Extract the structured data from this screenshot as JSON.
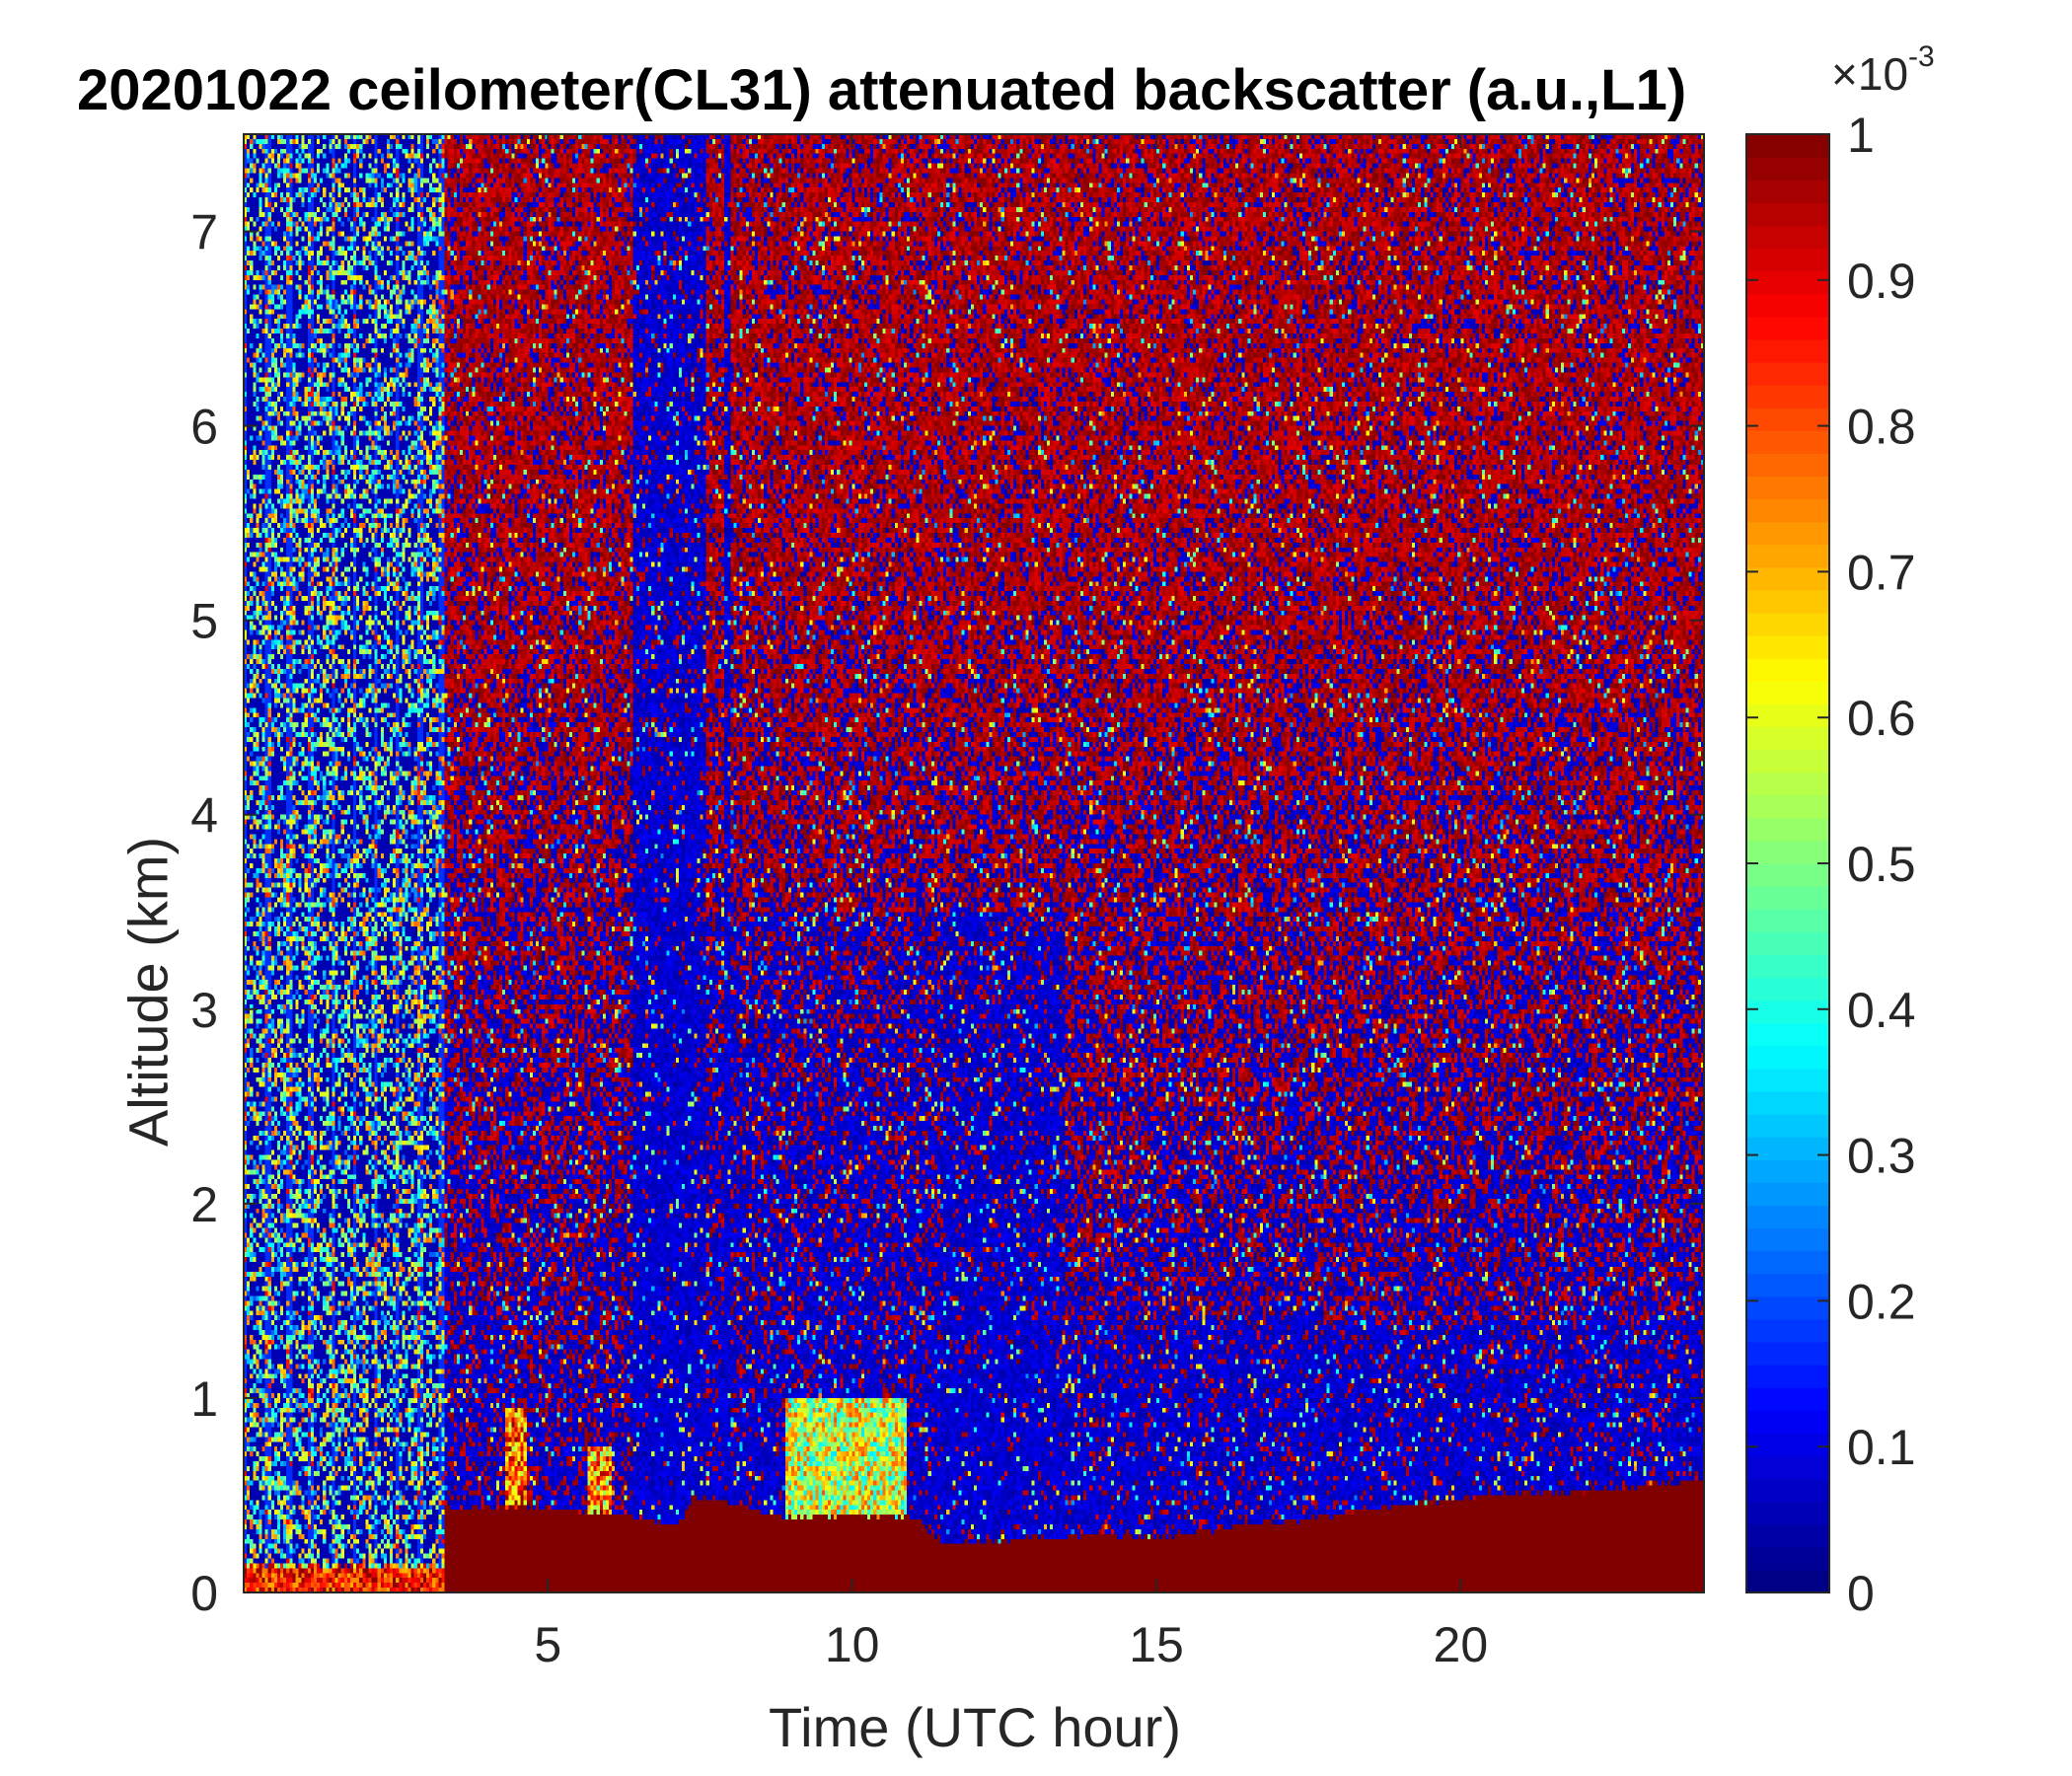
{
  "chart_data": {
    "type": "heatmap",
    "title": "20201022 ceilometer(CL31) attenuated backscatter (a.u.,L1)",
    "xlabel": "Time (UTC hour)",
    "ylabel": "Altitude (km)",
    "xlim": [
      0,
      24
    ],
    "ylim": [
      0,
      7.5
    ],
    "x_ticks": [
      5,
      10,
      15,
      20
    ],
    "y_ticks": [
      0,
      1,
      2,
      3,
      4,
      5,
      6,
      7
    ],
    "colorbar": {
      "label_multiplier": "×10",
      "label_exponent": "-3",
      "clim": [
        0,
        1
      ],
      "ticks": [
        0,
        0.1,
        0.2,
        0.3,
        0.4,
        0.5,
        0.6,
        0.7,
        0.8,
        0.9,
        1
      ],
      "tick_labels": [
        "0",
        "0.1",
        "0.2",
        "0.3",
        "0.4",
        "0.5",
        "0.6",
        "0.7",
        "0.8",
        "0.9",
        "1"
      ],
      "colormap": "jet"
    },
    "features": [
      {
        "name": "noisy low-signal period",
        "x_range": [
          0,
          3.3
        ],
        "y_range": [
          0.2,
          7.5
        ],
        "value": 0.2
      },
      {
        "name": "surface layer",
        "x_range": [
          0,
          3.3
        ],
        "y_range": [
          0,
          0.15
        ],
        "value": 1.0
      },
      {
        "name": "boundary layer",
        "x_range": [
          3.3,
          24
        ],
        "y_range": [
          0,
          0.45
        ],
        "value": 1.0
      },
      {
        "name": "elevated aerosol",
        "x_range": [
          9.0,
          10.8
        ],
        "y_range": [
          0.4,
          1.0
        ],
        "value": 0.55
      },
      {
        "name": "aerosol plume",
        "x_range": [
          4.3,
          4.6
        ],
        "y_range": [
          0.5,
          0.9
        ],
        "value": 0.8
      },
      {
        "name": "aerosol plume",
        "x_range": [
          5.7,
          6.0
        ],
        "y_range": [
          0.5,
          0.7
        ],
        "value": 0.75
      },
      {
        "name": "clear low-signal band",
        "x_range": [
          6.5,
          11.5
        ],
        "y_range": [
          0.5,
          4.5
        ],
        "value": 0.02
      },
      {
        "name": "free troposphere noise",
        "x_range": [
          3.3,
          24
        ],
        "y_range": [
          1.5,
          7.5
        ],
        "value": 0.85
      }
    ],
    "layer_top_km": [
      [
        3.3,
        0.43
      ],
      [
        4.5,
        0.44
      ],
      [
        5.5,
        0.42
      ],
      [
        6.5,
        0.38
      ],
      [
        7.2,
        0.35
      ],
      [
        7.4,
        0.5
      ],
      [
        8.0,
        0.45
      ],
      [
        9.0,
        0.38
      ],
      [
        10.0,
        0.4
      ],
      [
        11.0,
        0.38
      ],
      [
        11.5,
        0.25
      ],
      [
        12.5,
        0.27
      ],
      [
        14.0,
        0.3
      ],
      [
        15.0,
        0.28
      ],
      [
        16.0,
        0.33
      ],
      [
        17.5,
        0.38
      ],
      [
        19.0,
        0.45
      ],
      [
        20.5,
        0.5
      ],
      [
        22.0,
        0.52
      ],
      [
        24.0,
        0.58
      ]
    ]
  }
}
